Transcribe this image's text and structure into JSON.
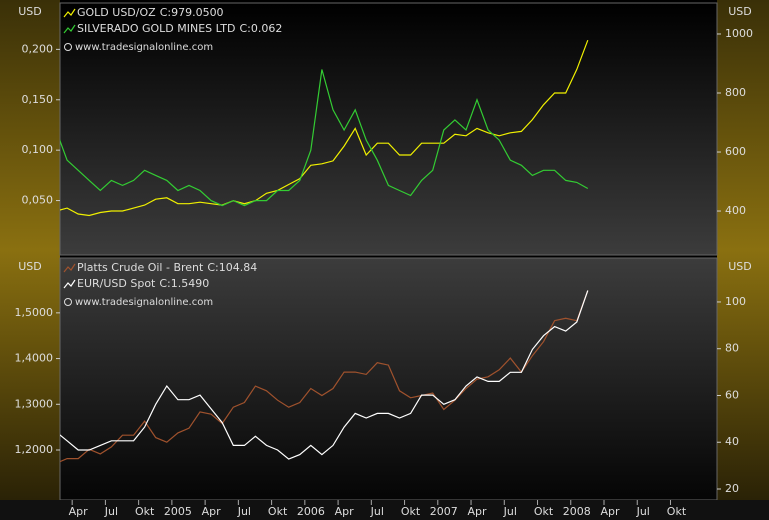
{
  "chart_data": [
    {
      "type": "line",
      "y_title": "USD",
      "y2_title": "USD",
      "source": "www.tradesignalonline.com",
      "ylim": [
        -0.004,
        0.246
      ],
      "yticks": [
        {
          "value": 0.05,
          "label": "0,050"
        },
        {
          "value": 0.1,
          "label": "0,100"
        },
        {
          "value": 0.15,
          "label": "0,150"
        },
        {
          "value": 0.2,
          "label": "0,200"
        }
      ],
      "y2lim": [
        251,
        1105
      ],
      "y2ticks": [
        400,
        600,
        800,
        1000
      ],
      "series": [
        {
          "name": "GOLD USD/OZ",
          "color": "#f0f000",
          "axis": "y2",
          "last_label": "C:979.0500",
          "last_color": "#33cc33",
          "values": [
            400,
            410,
            390,
            385,
            395,
            400,
            400,
            410,
            420,
            440,
            445,
            425,
            425,
            430,
            425,
            420,
            435,
            425,
            435,
            460,
            470,
            490,
            510,
            555,
            560,
            570,
            620,
            680,
            590,
            630,
            630,
            590,
            590,
            630,
            630,
            630,
            660,
            655,
            680,
            665,
            655,
            665,
            670,
            710,
            760,
            800,
            800,
            880,
            979,
            null,
            null,
            null,
            null,
            null,
            null,
            null,
            null,
            null
          ]
        },
        {
          "name": "SILVERADO GOLD MINES LTD",
          "color": "#33cc33",
          "axis": "y",
          "last_label": "C:0.062",
          "last_color": "#e02020",
          "values": [
            0.12,
            0.09,
            0.08,
            0.07,
            0.06,
            0.07,
            0.065,
            0.07,
            0.08,
            0.075,
            0.07,
            0.06,
            0.065,
            0.06,
            0.05,
            0.045,
            0.05,
            0.045,
            0.05,
            0.05,
            0.06,
            0.06,
            0.07,
            0.1,
            0.18,
            0.14,
            0.12,
            0.14,
            0.11,
            0.09,
            0.065,
            0.06,
            0.055,
            0.07,
            0.08,
            0.12,
            0.13,
            0.12,
            0.15,
            0.12,
            0.11,
            0.09,
            0.085,
            0.075,
            0.08,
            0.08,
            0.07,
            0.068,
            0.062,
            null,
            null,
            null,
            null,
            null,
            null,
            null,
            null,
            null
          ]
        }
      ]
    },
    {
      "type": "line",
      "y_title": "USD",
      "y2_title": "USD",
      "source": "www.tradesignalonline.com",
      "categories": [
        null,
        null,
        "Apr",
        null,
        null,
        "Jul",
        null,
        null,
        "Okt",
        null,
        null,
        "2005",
        null,
        null,
        "Apr",
        null,
        null,
        "Jul",
        null,
        null,
        "Okt",
        null,
        null,
        "2006",
        null,
        null,
        "Apr",
        null,
        null,
        "Jul",
        null,
        null,
        "Okt",
        null,
        null,
        "2007",
        null,
        null,
        "Apr",
        null,
        null,
        "Jul",
        null,
        null,
        "Okt",
        null,
        null,
        "2008",
        null,
        null,
        "Apr",
        null,
        null,
        "Jul",
        null,
        null,
        "Okt",
        null
      ],
      "ylim": [
        1.0906,
        1.62
      ],
      "yticks": [
        {
          "value": 1.2,
          "label": "1,2000"
        },
        {
          "value": 1.3,
          "label": "1,3000"
        },
        {
          "value": 1.4,
          "label": "1,4000"
        },
        {
          "value": 1.5,
          "label": "1,5000"
        }
      ],
      "y2lim": [
        15.3,
        118.8
      ],
      "y2ticks": [
        20,
        40,
        60,
        80,
        100
      ],
      "series": [
        {
          "name": "Platts Crude Oil - Brent",
          "color": "#a0522d",
          "axis": "y2",
          "last_label": "C:104.84",
          "last_color": "#ffffff",
          "values": [
            31,
            33,
            33,
            37,
            35,
            38,
            43,
            43,
            49,
            42,
            40,
            44,
            46,
            53,
            52,
            48,
            55,
            57,
            64,
            62,
            58,
            55,
            57,
            63,
            60,
            63,
            70,
            70,
            69,
            74,
            73,
            62,
            59,
            60,
            61,
            54,
            58,
            63,
            67,
            68,
            71,
            76,
            70,
            77,
            83,
            92,
            93,
            92,
            104.84,
            null,
            null,
            null,
            null,
            null,
            null,
            null,
            null,
            null
          ]
        },
        {
          "name": "EUR/USD Spot",
          "color": "#ffffff",
          "axis": "y",
          "last_label": "C:1.5490",
          "last_color": "#33cc33",
          "values": [
            1.24,
            1.22,
            1.2,
            1.2,
            1.21,
            1.22,
            1.22,
            1.22,
            1.25,
            1.3,
            1.34,
            1.31,
            1.31,
            1.32,
            1.29,
            1.26,
            1.21,
            1.21,
            1.23,
            1.21,
            1.2,
            1.18,
            1.19,
            1.21,
            1.19,
            1.21,
            1.25,
            1.28,
            1.27,
            1.28,
            1.28,
            1.27,
            1.28,
            1.32,
            1.32,
            1.3,
            1.31,
            1.34,
            1.36,
            1.35,
            1.35,
            1.37,
            1.37,
            1.42,
            1.45,
            1.47,
            1.46,
            1.48,
            1.549,
            null,
            null,
            null,
            null,
            null,
            null,
            null,
            null,
            null
          ]
        }
      ]
    }
  ]
}
